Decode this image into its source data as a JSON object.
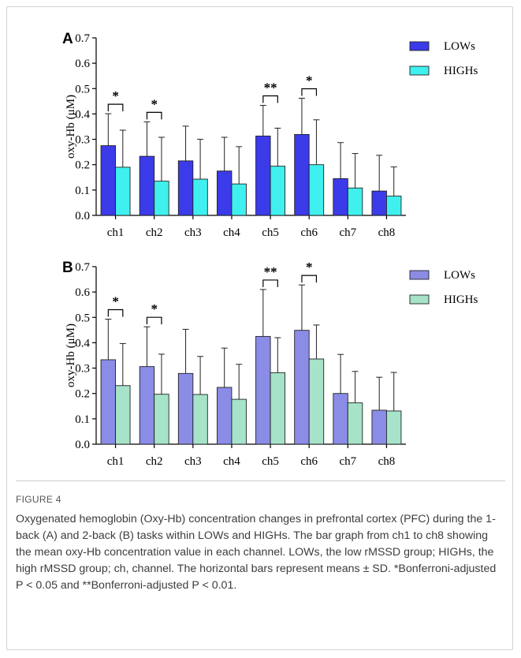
{
  "figure": {
    "label": "FIGURE 4",
    "caption": "Oxygenated hemoglobin (Oxy-Hb) concentration changes in prefrontal cortex (PFC) during the 1-back (A) and 2-back (B) tasks within LOWs and HIGHs. The bar graph from ch1 to ch8 showing the mean oxy-Hb concentration value in each channel. LOWs, the low rMSSD group; HIGHs, the high rMSSD group; ch, channel. The horizontal bars represent means ± SD. *Bonferroni-adjusted P < 0.05 and **Bonferroni-adjusted P < 0.01."
  },
  "chart_data": [
    {
      "panel": "A",
      "type": "bar",
      "ylabel": "oxy-Hb (μM)",
      "ylim": [
        0,
        0.7
      ],
      "yticks": [
        "0.0",
        "0.1",
        "0.2",
        "0.3",
        "0.4",
        "0.5",
        "0.6",
        "0.7"
      ],
      "categories": [
        "ch1",
        "ch2",
        "ch3",
        "ch4",
        "ch5",
        "ch6",
        "ch7",
        "ch8"
      ],
      "legend_position": "top-right",
      "series": [
        {
          "name": "LOWs",
          "color": "#3b3bea",
          "values": [
            0.275,
            0.233,
            0.215,
            0.175,
            0.313,
            0.319,
            0.145,
            0.096
          ],
          "sd": [
            0.126,
            0.136,
            0.137,
            0.133,
            0.121,
            0.143,
            0.142,
            0.141
          ]
        },
        {
          "name": "HIGHs",
          "color": "#3ff0ee",
          "values": [
            0.19,
            0.135,
            0.143,
            0.124,
            0.194,
            0.2,
            0.108,
            0.076
          ],
          "sd": [
            0.146,
            0.173,
            0.157,
            0.147,
            0.15,
            0.177,
            0.136,
            0.115
          ]
        }
      ],
      "significance": [
        {
          "category": "ch1",
          "label": "*"
        },
        {
          "category": "ch2",
          "label": "*"
        },
        {
          "category": "ch5",
          "label": "**"
        },
        {
          "category": "ch6",
          "label": "*"
        }
      ]
    },
    {
      "panel": "B",
      "type": "bar",
      "ylabel": "oxy-Hb (μM)",
      "ylim": [
        0,
        0.7
      ],
      "yticks": [
        "0.0",
        "0.1",
        "0.2",
        "0.3",
        "0.4",
        "0.5",
        "0.6",
        "0.7"
      ],
      "categories": [
        "ch1",
        "ch2",
        "ch3",
        "ch4",
        "ch5",
        "ch6",
        "ch7",
        "ch8"
      ],
      "legend_position": "top-right",
      "series": [
        {
          "name": "LOWs",
          "color": "#8a8ce6",
          "values": [
            0.333,
            0.306,
            0.279,
            0.224,
            0.425,
            0.449,
            0.2,
            0.134
          ],
          "sd": [
            0.16,
            0.157,
            0.174,
            0.155,
            0.185,
            0.179,
            0.154,
            0.13
          ]
        },
        {
          "name": "HIGHs",
          "color": "#a6e3c8",
          "values": [
            0.231,
            0.197,
            0.196,
            0.177,
            0.282,
            0.336,
            0.163,
            0.131
          ],
          "sd": [
            0.166,
            0.158,
            0.15,
            0.138,
            0.138,
            0.134,
            0.124,
            0.152
          ]
        }
      ],
      "significance": [
        {
          "category": "ch1",
          "label": "*"
        },
        {
          "category": "ch2",
          "label": "*"
        },
        {
          "category": "ch5",
          "label": "**"
        },
        {
          "category": "ch6",
          "label": "*"
        }
      ]
    }
  ]
}
